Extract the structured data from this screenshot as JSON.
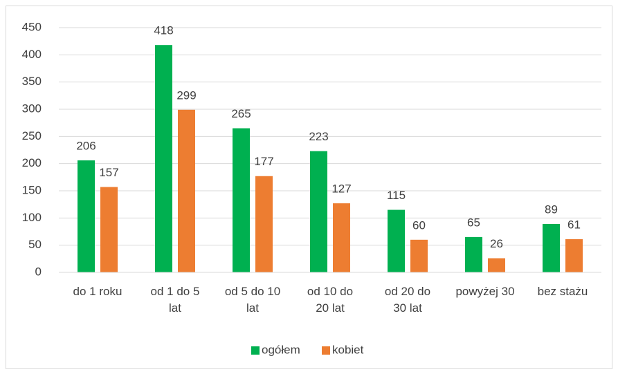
{
  "chart_data": {
    "type": "bar",
    "categories": [
      "do 1 roku",
      "od 1 do 5 lat",
      "od 5 do 10 lat",
      "od 10 do 20 lat",
      "od 20 do 30 lat",
      "powyżej 30",
      "bez stażu"
    ],
    "series": [
      {
        "name": "ogółem",
        "color": "#00b050",
        "values": [
          206,
          418,
          265,
          223,
          115,
          65,
          89
        ]
      },
      {
        "name": "kobiet",
        "color": "#ed7d31",
        "values": [
          157,
          299,
          177,
          127,
          60,
          26,
          61
        ]
      }
    ],
    "ylim": [
      0,
      450
    ],
    "yticks": [
      0,
      50,
      100,
      150,
      200,
      250,
      300,
      350,
      400,
      450
    ],
    "grid": true,
    "legend": "bottom"
  }
}
